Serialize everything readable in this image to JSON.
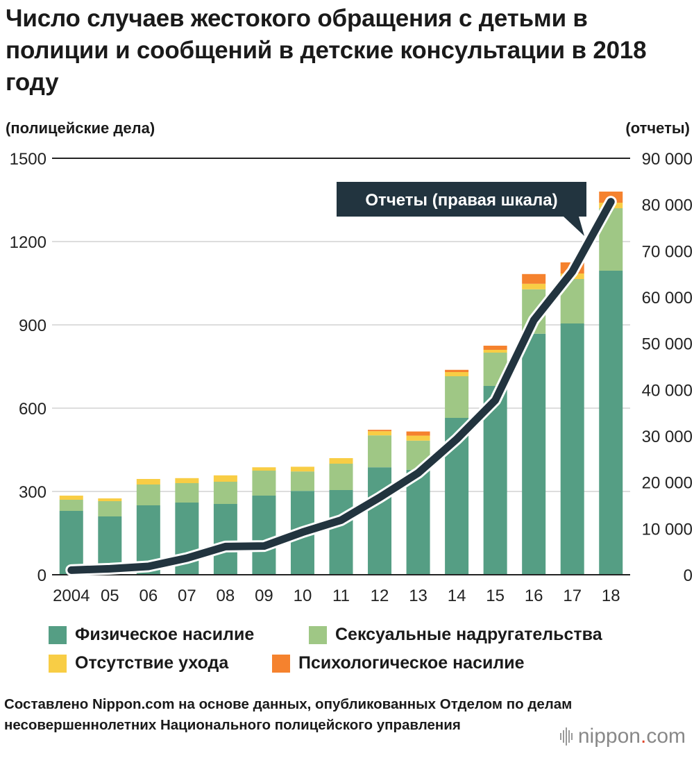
{
  "title": "Число случаев жестокого обращения с детьми в полиции и сообщений в детские консультации в 2018 году",
  "left_axis_caption": "(полицейские дела)",
  "right_axis_caption": "(отчеты)",
  "source": "Составлено Nippon.com на основе данных, опубликованных Отделом по делам несовершеннолетних Национального полицейского управления",
  "logo": {
    "text": "nippon",
    "dot": ".",
    "suffix": "com"
  },
  "colors": {
    "physical": "#559e84",
    "sexual": "#9fc785",
    "neglect": "#f8cd45",
    "psychological": "#f5822e",
    "line": "#22343f",
    "grid": "#bbbbbb"
  },
  "chart_data": {
    "type": "bar+line",
    "title": "Число случаев жестокого обращения с детьми в полиции и сообщений в детские консультации в 2018 году",
    "categories": [
      "2004",
      "05",
      "06",
      "07",
      "08",
      "09",
      "10",
      "11",
      "12",
      "13",
      "14",
      "15",
      "16",
      "17",
      "18"
    ],
    "left_axis": {
      "label": "(полицейские дела)",
      "range": [
        0,
        1500
      ],
      "ticks": [
        "0",
        "300",
        "600",
        "900",
        "1200",
        "1500"
      ]
    },
    "right_axis": {
      "label": "(отчеты)",
      "range": [
        0,
        90000
      ],
      "ticks": [
        "0",
        "10 000",
        "20 000",
        "30 000",
        "40 000",
        "50 000",
        "60 000",
        "70 000",
        "80 000",
        "90 000"
      ]
    },
    "series": [
      {
        "name": "Физическое насилие",
        "key": "physical",
        "axis": "left",
        "values": [
          230,
          210,
          250,
          260,
          255,
          285,
          302,
          305,
          387,
          378,
          565,
          680,
          868,
          905,
          1095
        ]
      },
      {
        "name": "Сексуальные надругательства",
        "key": "sexual",
        "axis": "left",
        "values": [
          40,
          55,
          75,
          70,
          80,
          90,
          70,
          95,
          115,
          105,
          150,
          120,
          160,
          160,
          225
        ]
      },
      {
        "name": "Отсутствие ухода",
        "key": "neglect",
        "axis": "left",
        "values": [
          15,
          10,
          20,
          18,
          23,
          12,
          17,
          20,
          15,
          18,
          15,
          10,
          20,
          20,
          20
        ]
      },
      {
        "name": "Психологическое насилие",
        "key": "psychological",
        "axis": "left",
        "values": [
          0,
          0,
          0,
          0,
          0,
          0,
          0,
          0,
          5,
          15,
          8,
          15,
          35,
          40,
          40
        ]
      },
      {
        "name": "Отчеты (правая шкала)",
        "key": "line",
        "axis": "right",
        "type": "line",
        "values": [
          1000,
          1300,
          1800,
          3600,
          6100,
          6200,
          9200,
          11800,
          16700,
          22000,
          29300,
          37700,
          55000,
          65500,
          80600
        ]
      }
    ],
    "callout": "Отчеты (правая шкала)"
  },
  "legend": [
    {
      "label": "Физическое насилие",
      "key": "physical"
    },
    {
      "label": "Сексуальные надругательства",
      "key": "sexual"
    },
    {
      "label": "Отсутствие ухода",
      "key": "neglect"
    },
    {
      "label": "Психологическое насилие",
      "key": "psychological"
    }
  ]
}
